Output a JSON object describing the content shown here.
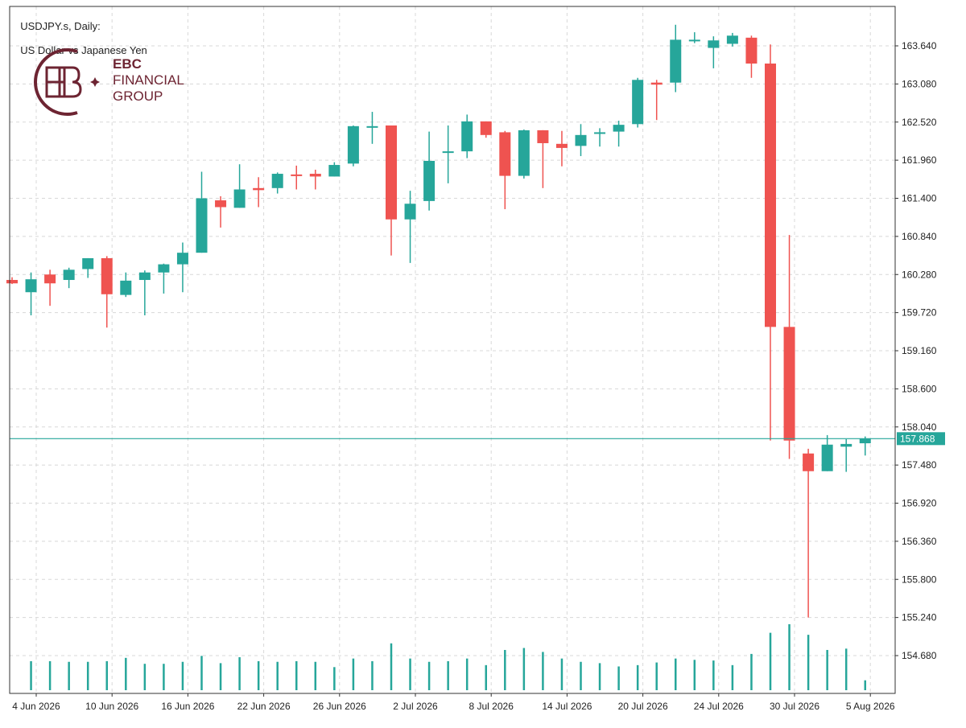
{
  "header": {
    "symbol": "USDJPY.s, Daily:",
    "description": "US Dollar vs Japanese Yen"
  },
  "logo": {
    "line1": "EBC",
    "line2": "FINANCIAL",
    "line3": "GROUP",
    "color": "#6d2432"
  },
  "colors": {
    "bull": "#26a69a",
    "bear": "#ef5350",
    "current_price_line": "#26a69a",
    "grid": "#d8d8d8",
    "axis": "#333333"
  },
  "chart_data": {
    "type": "candlestick",
    "title": "USDJPY.s, Daily: US Dollar vs Japanese Yen",
    "current_price": 157.868,
    "current_price_label": "157.868",
    "y_ticks": [
      "163.640",
      "163.080",
      "162.520",
      "161.960",
      "161.400",
      "160.840",
      "160.280",
      "159.720",
      "159.160",
      "158.600",
      "158.040",
      "157.480",
      "156.920",
      "156.360",
      "155.800",
      "155.240",
      "154.680"
    ],
    "x_tick_labels": [
      {
        "index": 0,
        "label": "4 Jun 2026"
      },
      {
        "index": 4,
        "label": "10 Jun 2026"
      },
      {
        "index": 8,
        "label": "16 Jun 2026"
      },
      {
        "index": 12,
        "label": "22 Jun 2026"
      },
      {
        "index": 16,
        "label": "26 Jun 2026"
      },
      {
        "index": 20,
        "label": "2 Jul 2026"
      },
      {
        "index": 24,
        "label": "8 Jul 2026"
      },
      {
        "index": 28,
        "label": "14 Jul 2026"
      },
      {
        "index": 32,
        "label": "20 Jul 2026"
      },
      {
        "index": 36,
        "label": "24 Jul 2026"
      },
      {
        "index": 40,
        "label": "30 Jul 2026"
      },
      {
        "index": 44,
        "label": "5 Aug 2026"
      }
    ],
    "grid": true,
    "candles": [
      {
        "o": 160.2,
        "h": 160.24,
        "l": 160.14,
        "c": 160.15
      },
      {
        "o": 160.02,
        "h": 160.31,
        "l": 159.68,
        "c": 160.21
      },
      {
        "o": 160.28,
        "h": 160.35,
        "l": 159.82,
        "c": 160.15
      },
      {
        "o": 160.2,
        "h": 160.38,
        "l": 160.08,
        "c": 160.35
      },
      {
        "o": 160.36,
        "h": 160.52,
        "l": 160.23,
        "c": 160.52
      },
      {
        "o": 160.52,
        "h": 160.55,
        "l": 159.5,
        "c": 159.99
      },
      {
        "o": 159.98,
        "h": 160.31,
        "l": 159.95,
        "c": 160.19
      },
      {
        "o": 160.2,
        "h": 160.34,
        "l": 159.68,
        "c": 160.31
      },
      {
        "o": 160.31,
        "h": 160.44,
        "l": 160.0,
        "c": 160.43
      },
      {
        "o": 160.43,
        "h": 160.75,
        "l": 160.02,
        "c": 160.6
      },
      {
        "o": 160.6,
        "h": 161.79,
        "l": 160.6,
        "c": 161.4
      },
      {
        "o": 161.37,
        "h": 161.43,
        "l": 160.97,
        "c": 161.27
      },
      {
        "o": 161.26,
        "h": 161.9,
        "l": 161.26,
        "c": 161.53
      },
      {
        "o": 161.55,
        "h": 161.71,
        "l": 161.27,
        "c": 161.52
      },
      {
        "o": 161.55,
        "h": 161.78,
        "l": 161.47,
        "c": 161.76
      },
      {
        "o": 161.75,
        "h": 161.88,
        "l": 161.53,
        "c": 161.73
      },
      {
        "o": 161.76,
        "h": 161.82,
        "l": 161.53,
        "c": 161.72
      },
      {
        "o": 161.72,
        "h": 161.93,
        "l": 161.72,
        "c": 161.89
      },
      {
        "o": 161.91,
        "h": 162.47,
        "l": 161.87,
        "c": 162.46
      },
      {
        "o": 162.46,
        "h": 162.67,
        "l": 162.2,
        "c": 162.46
      },
      {
        "o": 162.47,
        "h": 162.47,
        "l": 160.56,
        "c": 161.09
      },
      {
        "o": 161.09,
        "h": 161.51,
        "l": 160.45,
        "c": 161.32
      },
      {
        "o": 161.36,
        "h": 162.38,
        "l": 161.22,
        "c": 161.95
      },
      {
        "o": 162.08,
        "h": 162.47,
        "l": 161.62,
        "c": 162.09
      },
      {
        "o": 162.09,
        "h": 162.63,
        "l": 161.99,
        "c": 162.53
      },
      {
        "o": 162.53,
        "h": 162.53,
        "l": 162.29,
        "c": 162.33
      },
      {
        "o": 162.37,
        "h": 162.39,
        "l": 161.24,
        "c": 161.73
      },
      {
        "o": 161.73,
        "h": 162.41,
        "l": 161.69,
        "c": 162.4
      },
      {
        "o": 162.4,
        "h": 162.4,
        "l": 161.55,
        "c": 162.21
      },
      {
        "o": 162.2,
        "h": 162.39,
        "l": 161.87,
        "c": 162.14
      },
      {
        "o": 162.17,
        "h": 162.49,
        "l": 162.02,
        "c": 162.33
      },
      {
        "o": 162.35,
        "h": 162.43,
        "l": 162.16,
        "c": 162.37
      },
      {
        "o": 162.38,
        "h": 162.54,
        "l": 162.16,
        "c": 162.48
      },
      {
        "o": 162.49,
        "h": 163.17,
        "l": 162.44,
        "c": 163.14
      },
      {
        "o": 163.1,
        "h": 163.14,
        "l": 162.55,
        "c": 163.07
      },
      {
        "o": 163.1,
        "h": 163.95,
        "l": 162.96,
        "c": 163.73
      },
      {
        "o": 163.73,
        "h": 163.84,
        "l": 163.68,
        "c": 163.73
      },
      {
        "o": 163.61,
        "h": 163.78,
        "l": 163.31,
        "c": 163.72
      },
      {
        "o": 163.67,
        "h": 163.83,
        "l": 163.63,
        "c": 163.79
      },
      {
        "o": 163.76,
        "h": 163.79,
        "l": 163.17,
        "c": 163.38
      },
      {
        "o": 163.38,
        "h": 163.66,
        "l": 157.84,
        "c": 159.51
      },
      {
        "o": 159.51,
        "h": 160.86,
        "l": 157.57,
        "c": 157.84
      },
      {
        "o": 157.65,
        "h": 157.72,
        "l": 155.24,
        "c": 157.39
      },
      {
        "o": 157.39,
        "h": 157.92,
        "l": 157.39,
        "c": 157.78
      },
      {
        "o": 157.75,
        "h": 157.86,
        "l": 157.38,
        "c": 157.79
      },
      {
        "o": 157.8,
        "h": 157.9,
        "l": 157.62,
        "c": 157.87
      }
    ],
    "volume_relative": [
      0,
      0.44,
      0.44,
      0.43,
      0.43,
      0.44,
      0.49,
      0.4,
      0.4,
      0.43,
      0.52,
      0.41,
      0.5,
      0.44,
      0.43,
      0.44,
      0.43,
      0.35,
      0.48,
      0.44,
      0.71,
      0.48,
      0.43,
      0.44,
      0.48,
      0.38,
      0.61,
      0.64,
      0.58,
      0.48,
      0.43,
      0.41,
      0.36,
      0.38,
      0.42,
      0.48,
      0.46,
      0.45,
      0.38,
      0.55,
      0.87,
      1.0,
      0.84,
      0.61,
      0.63,
      0.15
    ]
  }
}
